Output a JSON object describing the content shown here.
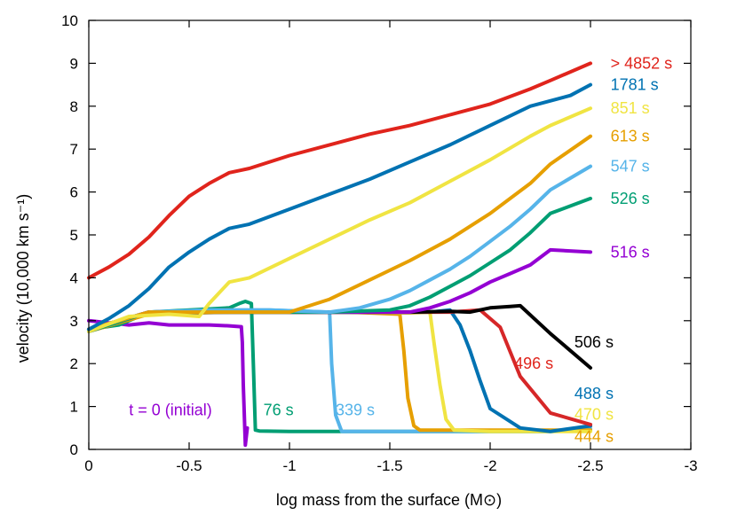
{
  "chart_data": {
    "type": "line",
    "title": "",
    "xlabel": "log mass from the surface (M⊙)",
    "ylabel": "velocity (10,000 km s⁻¹)",
    "xlim": [
      0,
      -3
    ],
    "ylim": [
      0,
      10
    ],
    "xticks": [
      0,
      -0.5,
      -1,
      -1.5,
      -2,
      -2.5,
      -3
    ],
    "xtick_labels": [
      "0",
      "-0.5",
      "-1",
      "-1.5",
      "-2",
      "-2.5",
      "-3"
    ],
    "yticks": [
      0,
      1,
      2,
      3,
      4,
      5,
      6,
      7,
      8,
      9,
      10
    ],
    "ytick_labels": [
      "0",
      "1",
      "2",
      "3",
      "4",
      "5",
      "6",
      "7",
      "8",
      "9",
      "10"
    ],
    "grid": false,
    "series": [
      {
        "name": "t = 0 (initial)",
        "color": "#9400d3",
        "x": [
          0,
          -0.1,
          -0.2,
          -0.3,
          -0.4,
          -0.5,
          -0.6,
          -0.7,
          -0.76,
          -0.765,
          -0.77,
          -0.78,
          -0.79
        ],
        "y": [
          3.0,
          2.95,
          2.9,
          2.95,
          2.9,
          2.9,
          2.9,
          2.88,
          2.86,
          2.5,
          1.5,
          0.1,
          0.5
        ]
      },
      {
        "name": "76 s",
        "color": "#009e73",
        "x": [
          0,
          -0.15,
          -0.3,
          -0.5,
          -0.7,
          -0.75,
          -0.78,
          -0.81,
          -0.82,
          -0.83,
          -0.85,
          -1.0,
          -1.5,
          -2.0,
          -2.3,
          -2.5
        ],
        "y": [
          2.8,
          2.9,
          3.2,
          3.25,
          3.3,
          3.4,
          3.45,
          3.4,
          2.0,
          0.45,
          0.43,
          0.42,
          0.42,
          0.42,
          0.42,
          0.45
        ]
      },
      {
        "name": "339 s",
        "color": "#56b4e9",
        "x": [
          0,
          -0.3,
          -0.6,
          -0.9,
          -1.2,
          -1.21,
          -1.23,
          -1.26,
          -1.5,
          -2.0,
          -2.3,
          -2.5
        ],
        "y": [
          2.8,
          3.2,
          3.25,
          3.25,
          3.2,
          2.0,
          0.8,
          0.42,
          0.42,
          0.42,
          0.42,
          0.48
        ]
      },
      {
        "name": "444 s",
        "color": "#e69f00",
        "x": [
          0,
          -0.3,
          -0.7,
          -1.0,
          -1.3,
          -1.55,
          -1.57,
          -1.59,
          -1.62,
          -1.65,
          -2.0,
          -2.5
        ],
        "y": [
          2.75,
          3.15,
          3.2,
          3.2,
          3.2,
          3.15,
          2.3,
          1.2,
          0.55,
          0.45,
          0.45,
          0.45
        ]
      },
      {
        "name": "470 s",
        "color": "#f0e442",
        "x": [
          0,
          -0.3,
          -0.7,
          -1.0,
          -1.3,
          -1.6,
          -1.7,
          -1.72,
          -1.75,
          -1.78,
          -1.82,
          -2.0,
          -2.5
        ],
        "y": [
          2.8,
          3.2,
          3.2,
          3.2,
          3.2,
          3.18,
          3.2,
          2.5,
          1.5,
          0.7,
          0.45,
          0.42,
          0.42
        ]
      },
      {
        "name": "488 s",
        "color": "#0072b2",
        "x": [
          0,
          -0.3,
          -0.7,
          -1.0,
          -1.3,
          -1.6,
          -1.7,
          -1.8,
          -1.85,
          -1.9,
          -1.95,
          -2.0,
          -2.15,
          -2.3,
          -2.5
        ],
        "y": [
          2.75,
          3.2,
          3.2,
          3.2,
          3.2,
          3.2,
          3.2,
          3.25,
          2.9,
          2.3,
          1.6,
          0.95,
          0.5,
          0.42,
          0.55
        ]
      },
      {
        "name": "496 s",
        "color": "#d62728",
        "x": [
          0,
          -0.3,
          -0.7,
          -1.0,
          -1.3,
          -1.6,
          -1.8,
          -1.95,
          -2.05,
          -2.15,
          -2.3,
          -2.5
        ],
        "y": [
          2.8,
          3.2,
          3.25,
          3.2,
          3.2,
          3.2,
          3.2,
          3.25,
          2.85,
          1.7,
          0.85,
          0.58
        ]
      },
      {
        "name": "506 s",
        "color": "#000000",
        "x": [
          0,
          -0.3,
          -0.7,
          -1.0,
          -1.3,
          -1.6,
          -1.8,
          -1.9,
          -2.0,
          -2.1,
          -2.15,
          -2.3,
          -2.5
        ],
        "y": [
          2.8,
          3.2,
          3.2,
          3.2,
          3.2,
          3.2,
          3.22,
          3.2,
          3.3,
          3.33,
          3.35,
          2.7,
          1.9
        ]
      },
      {
        "name": "516 s",
        "color": "#9400d3",
        "x": [
          0,
          -0.3,
          -0.7,
          -1.0,
          -1.3,
          -1.6,
          -1.7,
          -1.8,
          -1.9,
          -2.0,
          -2.1,
          -2.2,
          -2.3,
          -2.5
        ],
        "y": [
          2.8,
          3.2,
          3.2,
          3.2,
          3.2,
          3.2,
          3.3,
          3.45,
          3.65,
          3.9,
          4.1,
          4.3,
          4.65,
          4.6
        ]
      },
      {
        "name": "526 s",
        "color": "#009e73",
        "x": [
          0,
          -0.3,
          -0.6,
          -0.9,
          -1.2,
          -1.5,
          -1.6,
          -1.7,
          -1.8,
          -1.9,
          -2.0,
          -2.1,
          -2.2,
          -2.3,
          -2.5
        ],
        "y": [
          2.75,
          3.2,
          3.2,
          3.2,
          3.2,
          3.25,
          3.35,
          3.55,
          3.8,
          4.05,
          4.35,
          4.65,
          5.05,
          5.5,
          5.85
        ]
      },
      {
        "name": "547 s",
        "color": "#56b4e9",
        "x": [
          0,
          -0.3,
          -0.6,
          -0.9,
          -1.2,
          -1.35,
          -1.5,
          -1.6,
          -1.7,
          -1.8,
          -1.9,
          -2.0,
          -2.1,
          -2.2,
          -2.3,
          -2.5
        ],
        "y": [
          2.8,
          3.2,
          3.25,
          3.25,
          3.2,
          3.3,
          3.5,
          3.7,
          3.95,
          4.2,
          4.5,
          4.85,
          5.2,
          5.6,
          6.05,
          6.6
        ]
      },
      {
        "name": "613 s",
        "color": "#e69f00",
        "x": [
          0,
          -0.3,
          -0.6,
          -0.9,
          -1.0,
          -1.2,
          -1.4,
          -1.6,
          -1.8,
          -2.0,
          -2.2,
          -2.3,
          -2.5
        ],
        "y": [
          2.8,
          3.2,
          3.2,
          3.2,
          3.2,
          3.5,
          3.95,
          4.4,
          4.9,
          5.5,
          6.2,
          6.65,
          7.3
        ]
      },
      {
        "name": "851 s",
        "color": "#f0e442",
        "x": [
          0,
          -0.2,
          -0.4,
          -0.55,
          -0.6,
          -0.7,
          -0.8,
          -1.0,
          -1.2,
          -1.4,
          -1.6,
          -1.8,
          -2.0,
          -2.2,
          -2.3,
          -2.5
        ],
        "y": [
          2.75,
          3.1,
          3.15,
          3.1,
          3.4,
          3.9,
          4.0,
          4.45,
          4.9,
          5.35,
          5.75,
          6.25,
          6.75,
          7.3,
          7.55,
          7.95
        ]
      },
      {
        "name": "1781 s",
        "color": "#0072b2",
        "x": [
          0,
          -0.1,
          -0.2,
          -0.3,
          -0.4,
          -0.5,
          -0.6,
          -0.7,
          -0.75,
          -0.8,
          -1.0,
          -1.2,
          -1.4,
          -1.6,
          -1.8,
          -2.0,
          -2.2,
          -2.4,
          -2.5
        ],
        "y": [
          2.8,
          3.05,
          3.35,
          3.75,
          4.25,
          4.6,
          4.9,
          5.15,
          5.2,
          5.25,
          5.6,
          5.95,
          6.3,
          6.7,
          7.1,
          7.55,
          8.0,
          8.25,
          8.5
        ]
      },
      {
        "name": "> 4852 s",
        "color": "#e0241c",
        "x": [
          0,
          -0.1,
          -0.2,
          -0.3,
          -0.4,
          -0.5,
          -0.6,
          -0.7,
          -0.75,
          -0.8,
          -1.0,
          -1.2,
          -1.4,
          -1.6,
          -1.8,
          -2.0,
          -2.2,
          -2.3,
          -2.5
        ],
        "y": [
          4.0,
          4.25,
          4.55,
          4.95,
          5.45,
          5.9,
          6.2,
          6.45,
          6.5,
          6.55,
          6.85,
          7.1,
          7.35,
          7.55,
          7.8,
          8.05,
          8.4,
          8.6,
          9.0
        ]
      }
    ],
    "labels": [
      {
        "text": "> 4852 s",
        "x": -2.6,
        "y": 9.0,
        "color": "#e0241c"
      },
      {
        "text": "1781 s",
        "x": -2.6,
        "y": 8.5,
        "color": "#0072b2"
      },
      {
        "text": "851 s",
        "x": -2.6,
        "y": 7.95,
        "color": "#f0e442"
      },
      {
        "text": "613 s",
        "x": -2.6,
        "y": 7.3,
        "color": "#e69f00"
      },
      {
        "text": "547 s",
        "x": -2.6,
        "y": 6.6,
        "color": "#56b4e9"
      },
      {
        "text": "526 s",
        "x": -2.6,
        "y": 5.85,
        "color": "#009e73"
      },
      {
        "text": "516 s",
        "x": -2.6,
        "y": 4.6,
        "color": "#9400d3"
      },
      {
        "text": "506 s",
        "x": -2.42,
        "y": 2.5,
        "color": "#000000"
      },
      {
        "text": "496 s",
        "x": -2.12,
        "y": 2.0,
        "color": "#e0241c"
      },
      {
        "text": "488 s",
        "x": -2.42,
        "y": 1.3,
        "color": "#0072b2"
      },
      {
        "text": "470 s",
        "x": -2.42,
        "y": 0.82,
        "color": "#f0e442"
      },
      {
        "text": "444 s",
        "x": -2.42,
        "y": 0.3,
        "color": "#e69f00"
      },
      {
        "text": "339 s",
        "x": -1.23,
        "y": 0.92,
        "color": "#56b4e9"
      },
      {
        "text": "76 s",
        "x": -0.87,
        "y": 0.92,
        "color": "#009e73"
      },
      {
        "text": "t = 0 (initial)",
        "x": -0.2,
        "y": 0.92,
        "color": "#9400d3"
      }
    ]
  }
}
